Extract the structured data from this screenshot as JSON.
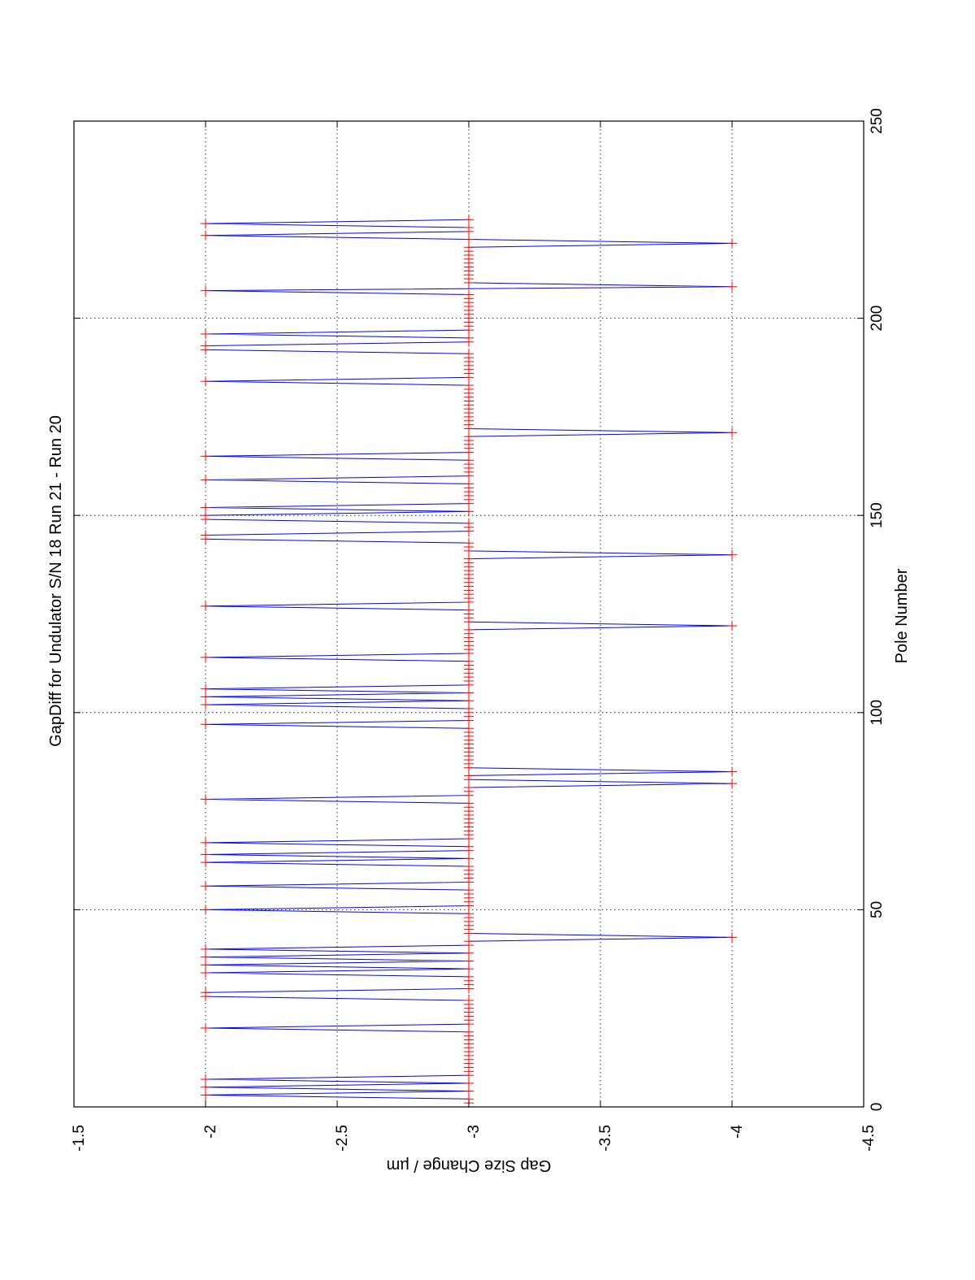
{
  "chart_data": {
    "type": "line",
    "orientation": "rotated-90-clockwise",
    "title": "GapDiff  for Undulator S/N 18 Run 21 - Run 20",
    "xlabel": "Pole Number",
    "ylabel": "Gap Size Change / µm",
    "xlim": [
      0,
      250
    ],
    "ylim": [
      -4.5,
      -1.5
    ],
    "xticks": [
      0,
      50,
      100,
      150,
      200,
      250
    ],
    "xtick_labels": [
      "0",
      "50",
      "100",
      "150",
      "200",
      "250"
    ],
    "yticks": [
      -1.5,
      -2,
      -2.5,
      -3,
      -3.5,
      -4,
      -4.5
    ],
    "ytick_labels": [
      "-1.5",
      "-2",
      "-2.5",
      "-3",
      "-3.5",
      "-4",
      "-4.5"
    ],
    "grid": true,
    "line_color": "#0000ff",
    "marker_color": "#ff0000",
    "marker": "+",
    "baseline": -3,
    "x_start": 1,
    "x_end": 225,
    "deviations": [
      {
        "x": 3,
        "y": -2
      },
      {
        "x": 5,
        "y": -2
      },
      {
        "x": 7,
        "y": -2
      },
      {
        "x": 20,
        "y": -2
      },
      {
        "x": 28,
        "y": -2
      },
      {
        "x": 29,
        "y": -2
      },
      {
        "x": 34,
        "y": -2
      },
      {
        "x": 36,
        "y": -2
      },
      {
        "x": 38,
        "y": -2
      },
      {
        "x": 40,
        "y": -2
      },
      {
        "x": 43,
        "y": -4
      },
      {
        "x": 50,
        "y": -2
      },
      {
        "x": 56,
        "y": -2
      },
      {
        "x": 62,
        "y": -2
      },
      {
        "x": 64,
        "y": -2
      },
      {
        "x": 67,
        "y": -2
      },
      {
        "x": 78,
        "y": -2
      },
      {
        "x": 82,
        "y": -4
      },
      {
        "x": 85,
        "y": -4
      },
      {
        "x": 97,
        "y": -2
      },
      {
        "x": 102,
        "y": -2
      },
      {
        "x": 104,
        "y": -2
      },
      {
        "x": 106,
        "y": -2
      },
      {
        "x": 114,
        "y": -2
      },
      {
        "x": 122,
        "y": -4
      },
      {
        "x": 127,
        "y": -2
      },
      {
        "x": 140,
        "y": -4
      },
      {
        "x": 144,
        "y": -2
      },
      {
        "x": 145,
        "y": -2
      },
      {
        "x": 149,
        "y": -2
      },
      {
        "x": 150,
        "y": -2
      },
      {
        "x": 152,
        "y": -2
      },
      {
        "x": 159,
        "y": -2
      },
      {
        "x": 165,
        "y": -2
      },
      {
        "x": 171,
        "y": -4
      },
      {
        "x": 184,
        "y": -2
      },
      {
        "x": 192,
        "y": -2
      },
      {
        "x": 193,
        "y": -2
      },
      {
        "x": 196,
        "y": -2
      },
      {
        "x": 207,
        "y": -2
      },
      {
        "x": 208,
        "y": -4
      },
      {
        "x": 219,
        "y": -4
      },
      {
        "x": 221,
        "y": -2
      },
      {
        "x": 224,
        "y": -2
      }
    ]
  }
}
